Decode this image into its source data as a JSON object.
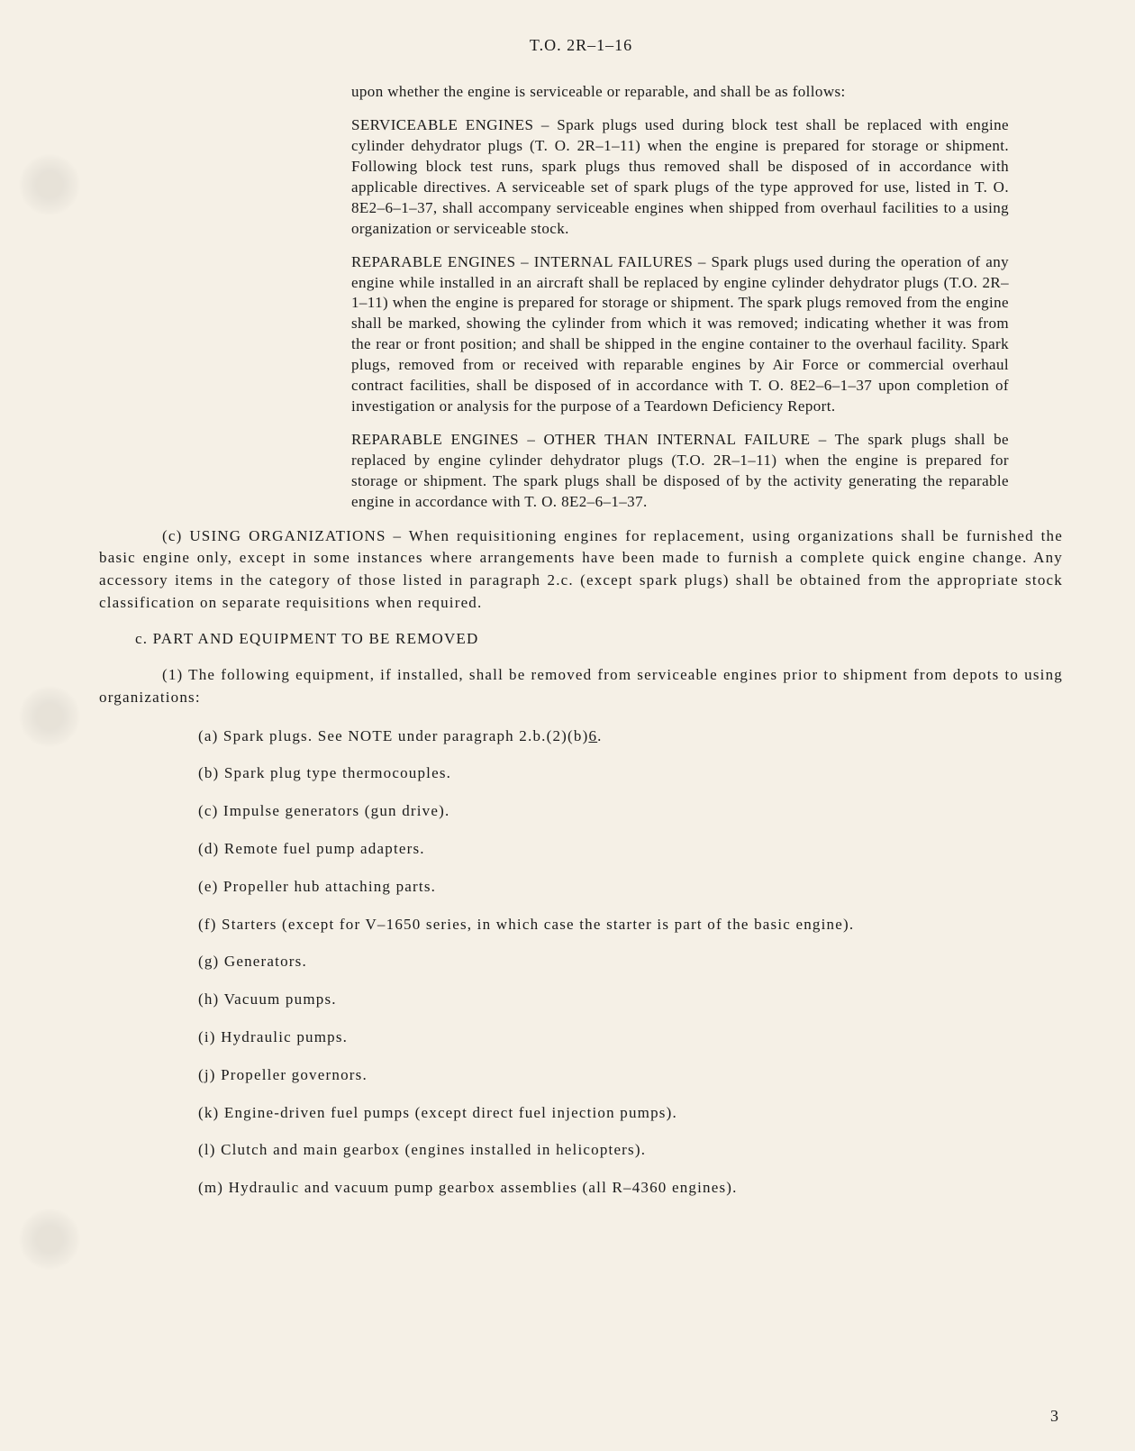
{
  "header": "T.O. 2R–1–16",
  "intro": "upon whether the engine is serviceable or reparable, and shall be as follows:",
  "serviceable": "SERVICEABLE ENGINES – Spark plugs used during block test shall be replaced with engine cylinder dehydrator plugs (T. O. 2R–1–11) when the engine is prepared for storage or shipment.  Following block test runs, spark plugs thus removed shall be disposed of in accordance with applicable directives.  A serviceable set of spark plugs of the type approved for use, listed in T. O. 8E2–6–1–37, shall accompany serviceable engines when shipped from overhaul facilities to a using organization or serviceable stock.",
  "reparable_internal": "REPARABLE ENGINES – INTERNAL FAILURES – Spark plugs used during the operation of any engine while installed in an aircraft shall be replaced by engine cylinder dehydrator plugs (T.O. 2R–1–11) when the engine is prepared for storage or shipment.  The spark plugs removed from the engine shall be marked, showing the cylinder from which it was removed; indicating whether it was from the rear or front position; and shall be shipped in the engine container to the overhaul facility.  Spark plugs, removed from or received with reparable engines by Air Force or commercial overhaul contract facilities, shall be disposed of in accordance with T. O. 8E2–6–1–37 upon completion of investigation or analysis for the purpose of a Teardown Deficiency Report.",
  "reparable_other": "REPARABLE ENGINES – OTHER THAN INTERNAL FAILURE – The spark plugs shall be replaced by engine cylinder dehydrator plugs (T.O. 2R–1–11) when the engine is prepared for storage or shipment. The spark plugs shall be disposed of by the activity generating the reparable engine in accordance with T. O. 8E2–6–1–37.",
  "para_c": "(c) USING ORGANIZATIONS – When requisitioning engines for replacement, using organizations shall be furnished the basic engine only, except in some instances where arrangements have been made to furnish a complete quick engine change.  Any accessory items in the category of those listed in paragraph 2.c. (except spark plugs) shall be obtained from the appropriate stock classification on separate requisitions when required.",
  "section_c_title": "c.  PART AND EQUIPMENT TO BE REMOVED",
  "para_c1": "(1) The following equipment, if installed, shall be removed from serviceable engines prior to shipment from depots to using organizations:",
  "items": {
    "a_pre": "(a)  Spark plugs.   See NOTE under paragraph 2.b.(2)(b)",
    "a_num": "6",
    "a_post": ".",
    "b": "(b)  Spark plug type thermocouples.",
    "c": "(c)  Impulse generators (gun drive).",
    "d": "(d)  Remote fuel pump adapters.",
    "e": "(e)  Propeller hub attaching parts.",
    "f": "(f)  Starters (except for V–1650 series, in which case the starter is part of the basic engine).",
    "g": "(g)  Generators.",
    "h": "(h)  Vacuum pumps.",
    "i": "(i)  Hydraulic pumps.",
    "j": "(j)  Propeller governors.",
    "k": "(k)  Engine-driven fuel pumps (except direct fuel injection pumps).",
    "l": "(l)  Clutch and main gearbox (engines installed in helicopters).",
    "m": "(m) Hydraulic and vacuum pump gearbox assemblies (all R–4360 engines)."
  },
  "page_number": "3"
}
